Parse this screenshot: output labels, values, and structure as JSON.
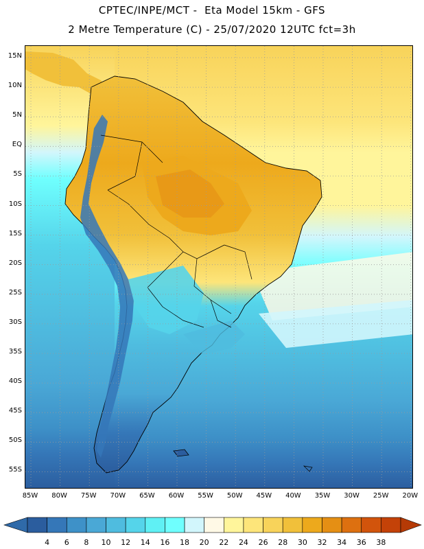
{
  "title_line1": "CPTEC/INPE/MCT -  Eta Model 15km - GFS",
  "title_line2": "2 Metre Temperature (C) - 25/07/2020 12UTC fct=3h",
  "lat_labels": [
    "15N",
    "10N",
    "5N",
    "EQ",
    "5S",
    "10S",
    "15S",
    "20S",
    "25S",
    "30S",
    "35S",
    "40S",
    "45S",
    "50S",
    "55S"
  ],
  "lon_labels": [
    "85W",
    "80W",
    "75W",
    "70W",
    "65W",
    "60W",
    "55W",
    "50W",
    "45W",
    "40W",
    "35W",
    "30W",
    "25W",
    "20W"
  ],
  "legend": {
    "labels": [
      "4",
      "6",
      "8",
      "10",
      "12",
      "14",
      "16",
      "18",
      "20",
      "22",
      "24",
      "26",
      "28",
      "30",
      "32",
      "34",
      "36",
      "38"
    ],
    "colors": [
      "#2b5d9e",
      "#3577b8",
      "#3e91c8",
      "#4aa8d6",
      "#4fbcdf",
      "#55d4ea",
      "#5ff0f4",
      "#6ffffe",
      "#d2f6fc",
      "#fff9e6",
      "#fff59b",
      "#fde57a",
      "#f8d35a",
      "#f1c03a",
      "#eda91c",
      "#e58f14",
      "#dd7010",
      "#d2540c",
      "#c44208"
    ],
    "under_color": "#2f6aa9",
    "over_color": "#b53a06"
  },
  "colors": {
    "ocean_deep": "#2b5d9e",
    "ocean_mid": "#4aa8d6",
    "ocean_warm": "#fde57a",
    "land_hot": "#eda91c",
    "andes_cold": "#3577b8",
    "coastline": "#000000",
    "grid": "#9a9a9a"
  }
}
